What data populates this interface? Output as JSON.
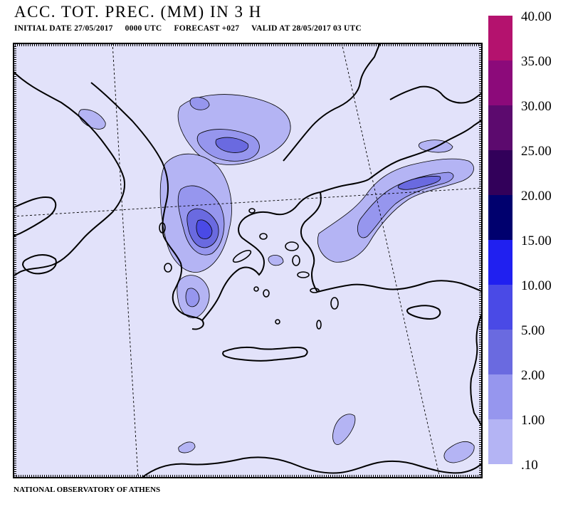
{
  "title": "ACC. TOT. PREC. (MM) IN 3 H",
  "subtitle": {
    "initial_date": "INITIAL DATE 27/05/2017",
    "time": "0000 UTC",
    "forecast": "FORECAST +027",
    "valid": "VALID AT  28/05/2017  03 UTC"
  },
  "footer": "NATIONAL OBSERVATORY OF ATHENS",
  "legend": {
    "levels": [
      {
        "label": "40.00",
        "color": "#b4126e"
      },
      {
        "label": "35.00",
        "color": "#8c0a7a"
      },
      {
        "label": "30.00",
        "color": "#5c0a6e"
      },
      {
        "label": "25.00",
        "color": "#32005a"
      },
      {
        "label": "20.00",
        "color": "#00006e"
      },
      {
        "label": "15.00",
        "color": "#2020f0"
      },
      {
        "label": "10.00",
        "color": "#4a4ae6"
      },
      {
        "label": "5.00",
        "color": "#6a6ae0"
      },
      {
        "label": "2.00",
        "color": "#9696ee"
      },
      {
        "label": "1.00",
        "color": "#b4b4f4"
      },
      {
        "label": ".10",
        "color": "#d2d2f6"
      }
    ],
    "background_color": "#e2e2fa"
  },
  "map": {
    "background_color": "#e2e2fa",
    "coastline_color": "#000000",
    "grid_style": "dashed"
  }
}
